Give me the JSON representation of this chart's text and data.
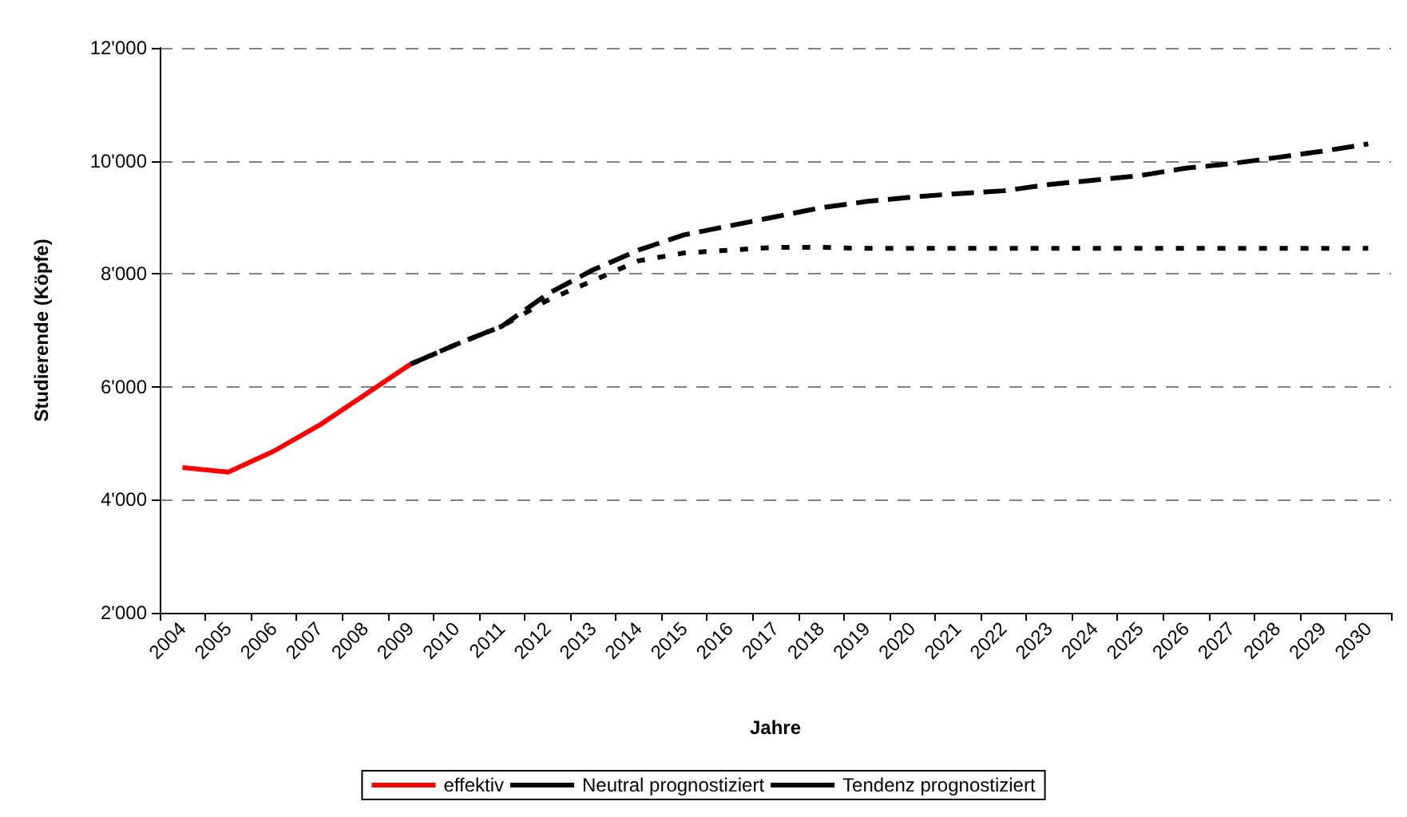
{
  "chart_data": {
    "type": "line",
    "xlabel": "Jahre",
    "ylabel": "Studierende (Köpfe)",
    "categories": [
      "2004",
      "2005",
      "2006",
      "2007",
      "2008",
      "2009",
      "2010",
      "2011",
      "2012",
      "2013",
      "2014",
      "2015",
      "2016",
      "2017",
      "2018",
      "2019",
      "2020",
      "2021",
      "2022",
      "2023",
      "2024",
      "2025",
      "2026",
      "2027",
      "2028",
      "2029",
      "2030"
    ],
    "series": [
      {
        "name": "effektiv",
        "color": "#ff0000",
        "line_style": "solid",
        "values": [
          4570,
          4490,
          4860,
          5320,
          5860,
          6400,
          null,
          null,
          null,
          null,
          null,
          null,
          null,
          null,
          null,
          null,
          null,
          null,
          null,
          null,
          null,
          null,
          null,
          null,
          null,
          null,
          null
        ]
      },
      {
        "name": "Neutral prognostiziert",
        "color": "#000000",
        "line_style": "dotted",
        "values": [
          null,
          null,
          null,
          null,
          null,
          6400,
          6750,
          7070,
          7530,
          7880,
          8230,
          8370,
          8420,
          8470,
          8470,
          8450,
          8450,
          8450,
          8450,
          8450,
          8450,
          8450,
          8450,
          8450,
          8450,
          8450,
          8450
        ]
      },
      {
        "name": "Tendenz prognostiziert",
        "color": "#000000",
        "line_style": "dashed",
        "values": [
          null,
          null,
          null,
          null,
          null,
          6400,
          6750,
          7070,
          7640,
          8070,
          8420,
          8690,
          8850,
          9010,
          9170,
          9280,
          9360,
          9420,
          9470,
          9580,
          9660,
          9740,
          9870,
          9950,
          10060,
          10170,
          10300
        ]
      }
    ],
    "ylim": [
      2000,
      12000
    ],
    "yticks": [
      {
        "value": 2000,
        "label": "2'000"
      },
      {
        "value": 4000,
        "label": "4'000"
      },
      {
        "value": 6000,
        "label": "6'000"
      },
      {
        "value": 8000,
        "label": "8'000"
      },
      {
        "value": 10000,
        "label": "10'000"
      },
      {
        "value": 12000,
        "label": "12'000"
      }
    ],
    "grid": "y",
    "legend": "bottom",
    "marker": "none"
  }
}
